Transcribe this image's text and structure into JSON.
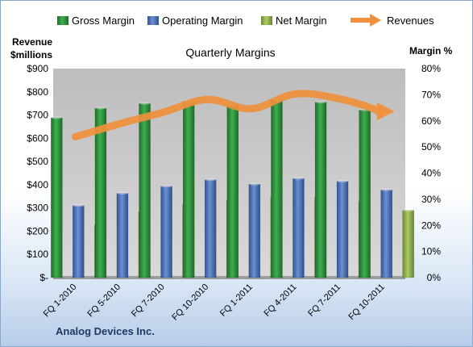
{
  "chart_data": {
    "type": "bar",
    "title": "Quarterly Margins",
    "left_axis_title": [
      "Revenue",
      "$millions"
    ],
    "right_axis_title": "Margin %",
    "categories": [
      "FQ 1-2010",
      "FQ 5-2010",
      "FQ 7-2010",
      "FQ 10-2010",
      "FQ 1-2011",
      "FQ 4-2011",
      "FQ 7-2011",
      "FQ 10-2011"
    ],
    "left_ticks": [
      "$-",
      "$100",
      "$200",
      "$300",
      "$400",
      "$500",
      "$600",
      "$700",
      "$800",
      "$900"
    ],
    "right_ticks": [
      "0%",
      "10%",
      "20%",
      "30%",
      "40%",
      "50%",
      "60%",
      "70%",
      "80%"
    ],
    "ylim_left": [
      0,
      900
    ],
    "ylim_right": [
      0,
      80
    ],
    "series": [
      {
        "name": "Gross Margin",
        "axis": "right",
        "color": "#2e8b3a",
        "values": [
          61.2,
          64.9,
          66.7,
          67.5,
          66.1,
          68.1,
          67.2,
          64.2
        ]
      },
      {
        "name": "Operating Margin",
        "axis": "right",
        "color": "#4a72b8",
        "values": [
          27.6,
          32.3,
          35.0,
          37.5,
          35.8,
          38.0,
          36.9,
          33.6
        ]
      },
      {
        "name": "Net Margin",
        "axis": "right",
        "color": "#8cad4c",
        "values": [
          20.2,
          25.2,
          28.1,
          29.6,
          30.8,
          30.8,
          29.3,
          25.8
        ]
      },
      {
        "name": "Revenues",
        "axis": "left",
        "type": "line",
        "color": "#f0903c",
        "values": [
          606,
          662,
          712,
          767,
          727,
          791,
          770,
          716
        ]
      }
    ],
    "grid": false,
    "legend_position": "top"
  },
  "footer": {
    "company": "Analog Devices Inc."
  }
}
